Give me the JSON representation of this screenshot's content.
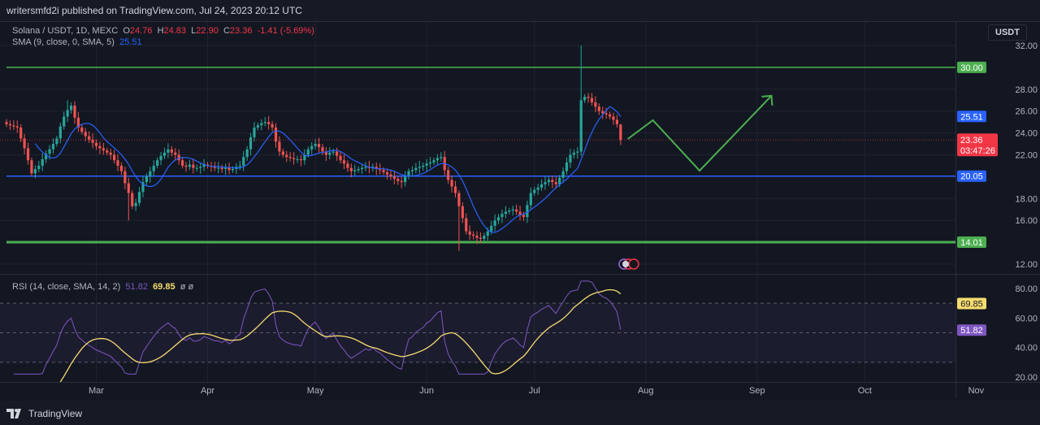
{
  "header": {
    "published": "writersmfd2i published on TradingView.com, Jul 24, 2023 20:12 UTC"
  },
  "legend": {
    "symbol": "Solana / USDT, 1D, MEXC",
    "o_label": "O",
    "o": "24.76",
    "h_label": "H",
    "h": "24.83",
    "l_label": "L",
    "l": "22.90",
    "c_label": "C",
    "c": "23.36",
    "change": "-1.41 (-5.69%)",
    "sma_label": "SMA (9, close, 0, SMA, 5)",
    "sma_value": "25.51",
    "rsi_label": "RSI (14, close, SMA, 14, 2)",
    "rsi_value": "51.82",
    "rsi_sma_value": "69.85",
    "rsi_extra": "ø ø"
  },
  "axis": {
    "unit": "USDT"
  },
  "footer": {
    "brand": "TradingView"
  },
  "colors": {
    "up": "#26a69a",
    "down": "#ef5350",
    "sma": "#2962ff",
    "rsi": "#7e57c2",
    "rsi_sma": "#f7dc6f",
    "support": "#4caf50",
    "level_blue": "#2962ff",
    "current": "#f23645",
    "projection": "#4caf50"
  },
  "chart_data": {
    "type": "candlestick",
    "interval": "1D",
    "first_date": "2023-02-04",
    "closes": [
      24.8,
      24.7,
      24.6,
      24.5,
      23.5,
      22.6,
      21.5,
      20.3,
      20.7,
      21.0,
      21.6,
      22.1,
      22.5,
      23.0,
      23.5,
      24.6,
      25.5,
      26.1,
      26.5,
      25.4,
      24.5,
      24.1,
      23.7,
      23.4,
      23.1,
      22.8,
      22.6,
      22.4,
      22.2,
      22.0,
      21.5,
      21.0,
      20.5,
      19.4,
      18.5,
      17.3,
      17.6,
      18.6,
      19.5,
      20.0,
      20.5,
      21.0,
      21.5,
      21.9,
      22.2,
      22.5,
      22.2,
      22.0,
      21.5,
      21.0,
      20.9,
      21.1,
      20.8,
      20.8,
      20.9,
      21.1,
      21.0,
      20.9,
      20.8,
      20.8,
      20.7,
      20.8,
      20.6,
      20.7,
      20.9,
      21.0,
      21.8,
      22.5,
      23.6,
      24.5,
      24.7,
      24.9,
      25.0,
      24.8,
      24.5,
      23.2,
      22.3,
      22.0,
      21.8,
      21.7,
      21.6,
      21.6,
      21.5,
      22.0,
      22.5,
      22.8,
      23.0,
      22.7,
      22.3,
      22.0,
      22.2,
      22.3,
      21.9,
      21.5,
      21.2,
      20.8,
      20.5,
      20.6,
      20.7,
      20.8,
      20.9,
      20.8,
      20.9,
      20.7,
      20.6,
      20.4,
      20.2,
      20.0,
      19.8,
      19.6,
      19.5,
      20.0,
      20.5,
      20.6,
      20.8,
      20.9,
      21.0,
      21.2,
      21.3,
      21.5,
      21.7,
      21.8,
      20.6,
      19.7,
      19.1,
      18.5,
      17.3,
      16.2,
      15.0,
      14.7,
      14.6,
      14.4,
      14.3,
      14.6,
      15.0,
      15.5,
      16.0,
      16.3,
      16.6,
      16.8,
      16.9,
      17.0,
      16.8,
      16.5,
      16.3,
      17.4,
      18.5,
      18.8,
      19.0,
      19.3,
      19.5,
      19.7,
      19.5,
      19.3,
      19.9,
      20.5,
      21.3,
      22.0,
      22.2,
      22.3,
      27.0,
      27.3,
      27.2,
      26.8,
      26.4,
      26.0,
      25.8,
      25.7,
      25.5,
      25.2,
      24.8,
      23.36
    ],
    "last_candle": {
      "open": 24.76,
      "high": 24.83,
      "low": 22.9,
      "close": 23.36
    },
    "extreme_wicks": [
      {
        "date": "2023-07-14",
        "high": 32.0
      },
      {
        "date": "2023-06-10",
        "low": 13.2
      },
      {
        "date": "2023-02-21",
        "high": 27.0
      },
      {
        "date": "2023-03-10",
        "low": 16.0
      }
    ],
    "sma": {
      "length": 9,
      "last": 25.51
    },
    "rsi": {
      "length": 14,
      "sma_length": 14,
      "last": 51.82,
      "sma_last": 69.85,
      "bands": [
        70,
        50,
        30
      ]
    },
    "horizontal_levels": [
      {
        "price": 30.0,
        "label": "30.00",
        "color": "#4caf50",
        "width": "thin"
      },
      {
        "price": 20.05,
        "label": "20.05",
        "color": "#2962ff",
        "width": "thin"
      },
      {
        "price": 14.01,
        "label": "14.01",
        "color": "#4caf50",
        "width": "thick"
      }
    ],
    "current_price": {
      "label": "23.36",
      "countdown": "03:47:26"
    },
    "sma_tag": "25.51",
    "projection_path": [
      {
        "date": "2023-07-27",
        "price": 23.45
      },
      {
        "date": "2023-08-03",
        "price": 25.16
      },
      {
        "date": "2023-08-16",
        "price": 20.55
      },
      {
        "date": "2023-09-05",
        "price": 27.4
      }
    ],
    "price_ticks": [
      "32.00",
      "28.00",
      "26.00",
      "24.00",
      "22.00",
      "18.00",
      "16.00",
      "12.00"
    ],
    "price_tick_values": [
      32,
      28,
      26,
      24,
      22,
      18,
      16,
      12
    ],
    "rsi_ticks": [
      "80.00",
      "60.00",
      "40.00",
      "20.00"
    ],
    "rsi_tick_values": [
      80,
      60,
      40,
      20
    ],
    "rsi_tags": {
      "sma": "69.85",
      "rsi": "51.82"
    },
    "time_ticks": [
      {
        "label": "Mar",
        "date": "2023-03-01"
      },
      {
        "label": "Apr",
        "date": "2023-04-01"
      },
      {
        "label": "May",
        "date": "2023-05-01"
      },
      {
        "label": "Jun",
        "date": "2023-06-01"
      },
      {
        "label": "Jul",
        "date": "2023-07-01"
      },
      {
        "label": "Aug",
        "date": "2023-08-01"
      },
      {
        "label": "Sep",
        "date": "2023-09-01"
      },
      {
        "label": "Oct",
        "date": "2023-10-01"
      },
      {
        "label": "Nov",
        "date": "2023-11-01"
      }
    ],
    "price_range": [
      12,
      32
    ],
    "rsi_range": [
      20,
      80
    ],
    "grid": true
  }
}
